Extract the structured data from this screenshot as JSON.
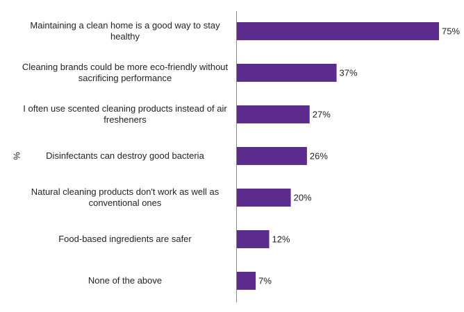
{
  "chart_data": {
    "type": "bar",
    "orientation": "horizontal",
    "y_label": "%",
    "categories": [
      "Maintaining a clean home is a good way to stay healthy",
      "Cleaning brands could be more eco-friendly without sacrificing performance",
      "I often use scented cleaning products instead of air fresheners",
      "Disinfectants can destroy good bacteria",
      "Natural cleaning products don't work as well as conventional ones",
      "Food-based ingredients are safer",
      "None of the above"
    ],
    "values": [
      75,
      37,
      27,
      26,
      20,
      12,
      7
    ],
    "value_labels": [
      "75%",
      "37%",
      "27%",
      "26%",
      "20%",
      "12%",
      "7%"
    ],
    "color": "#5b2c8e"
  }
}
